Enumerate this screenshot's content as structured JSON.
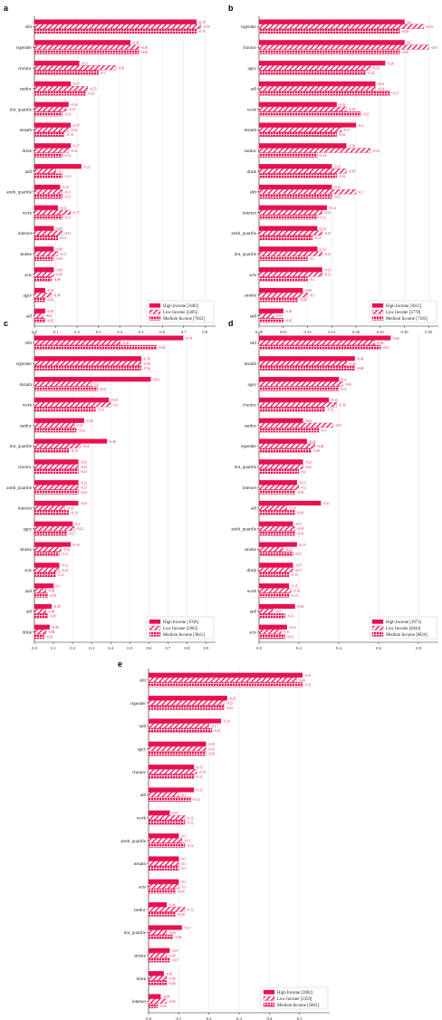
{
  "colors": {
    "bar": "#e8114f",
    "text_value": "#e8114f",
    "axis": "#222222",
    "grid": "#dddddd"
  },
  "legend_labels": [
    "High Income",
    "Low Income",
    "Medium Income"
  ],
  "chart_data": [
    {
      "panel": "a",
      "type": "bar",
      "orientation": "horizontal",
      "categories": [
        "shlt",
        "rsgender",
        "chronic",
        "raeduc",
        "itot_quartile",
        "mstath",
        "drink",
        "iadl",
        "atotb_quartile",
        "work",
        "internet",
        "smoke",
        "acts",
        "agey",
        "adl"
      ],
      "series": [
        {
          "name": "High Income",
          "n": "[3482]",
          "values": [
            0.76,
            0.45,
            0.21,
            0.17,
            0.16,
            0.17,
            0.17,
            0.22,
            0.12,
            0.11,
            0.09,
            0.09,
            0.09,
            0.05,
            0.05
          ]
        },
        {
          "name": "Low Income",
          "n": "[3405]",
          "values": [
            0.78,
            0.49,
            0.38,
            0.25,
            0.15,
            0.16,
            0.16,
            0.1,
            0.13,
            0.17,
            0.13,
            0.11,
            0.09,
            0.08,
            0.04
          ]
        },
        {
          "name": "Medium Income",
          "n": "[7042]",
          "values": [
            0.76,
            0.49,
            0.3,
            0.24,
            0.13,
            0.14,
            0.13,
            0.13,
            0.13,
            0.13,
            0.11,
            0.09,
            0.08,
            0.05,
            0.05
          ]
        }
      ],
      "xticks": [
        0.0,
        0.1,
        0.2,
        0.3,
        0.4,
        0.5,
        0.6,
        0.7,
        0.8
      ],
      "xlim": [
        0,
        0.85
      ],
      "legend": "bottom-right"
    },
    {
      "panel": "b",
      "type": "bar",
      "orientation": "horizontal",
      "categories": [
        "rsgender",
        "chronic",
        "agey",
        "adl",
        "work",
        "mstath",
        "raeduc",
        "drink",
        "shlt",
        "internet",
        "atotb_quartile",
        "itot_quartile",
        "acts",
        "smoke",
        "iadl"
      ],
      "series": [
        {
          "name": "High Income",
          "n": "[3612]",
          "values": [
            0.3,
            0.3,
            0.26,
            0.24,
            0.16,
            0.2,
            0.18,
            0.15,
            0.15,
            0.14,
            0.12,
            0.12,
            0.13,
            0.09,
            0.05
          ]
        },
        {
          "name": "Low Income",
          "n": "[3778]",
          "values": [
            0.34,
            0.35,
            0.23,
            0.24,
            0.18,
            0.17,
            0.23,
            0.18,
            0.2,
            0.13,
            0.13,
            0.13,
            0.13,
            0.1,
            0.03
          ]
        },
        {
          "name": "Medium Income",
          "n": "[7183]",
          "values": [
            0.29,
            0.29,
            0.22,
            0.27,
            0.21,
            0.16,
            0.12,
            0.16,
            0.15,
            0.12,
            0.11,
            0.1,
            0.1,
            0.08,
            0.05
          ]
        }
      ],
      "xticks": [
        0.0,
        0.05,
        0.1,
        0.15,
        0.2,
        0.25,
        0.3,
        0.35
      ],
      "xlim": [
        0,
        0.37
      ],
      "legend": "bottom-right"
    },
    {
      "panel": "c",
      "type": "bar",
      "orientation": "horizontal",
      "categories": [
        "shlt",
        "rsgender",
        "mstath",
        "work",
        "raeduc",
        "itot_quartile",
        "chronic",
        "atotb_quartile",
        "internet",
        "agey",
        "smoke",
        "acts",
        "iadl",
        "adl",
        "drink"
      ],
      "series": [
        {
          "name": "High Income",
          "n": "[1938]",
          "values": [
            0.78,
            0.56,
            0.61,
            0.39,
            0.26,
            0.38,
            0.23,
            0.23,
            0.23,
            0.2,
            0.19,
            0.13,
            0.1,
            0.09,
            0.08
          ]
        },
        {
          "name": "Low Income",
          "n": "[2065]",
          "values": [
            0.45,
            0.56,
            0.3,
            0.4,
            0.21,
            0.24,
            0.23,
            0.23,
            0.16,
            0.21,
            0.14,
            0.13,
            0.06,
            0.06,
            0.06
          ]
        },
        {
          "name": "Medium Income",
          "n": "[3841]",
          "values": [
            0.64,
            0.56,
            0.33,
            0.32,
            0.22,
            0.18,
            0.23,
            0.23,
            0.18,
            0.17,
            0.13,
            0.11,
            0.07,
            0.07,
            0.05
          ]
        }
      ],
      "xticks": [
        0.0,
        0.1,
        0.2,
        0.3,
        0.4,
        0.5,
        0.6,
        0.7,
        0.8,
        0.9
      ],
      "xlim": [
        0,
        0.95
      ],
      "legend": "bottom-right"
    },
    {
      "panel": "d",
      "type": "bar",
      "orientation": "horizontal",
      "categories": [
        "shlt",
        "mstath",
        "agey",
        "chronic",
        "raeduc",
        "rsgender",
        "itot_quartile",
        "internet",
        "adl",
        "atotb_quartile",
        "smoke",
        "drink",
        "work",
        "iadl",
        "acts"
      ],
      "series": [
        {
          "name": "High Income",
          "n": "[3973]",
          "values": [
            0.66,
            0.48,
            0.4,
            0.35,
            0.22,
            0.24,
            0.22,
            0.19,
            0.31,
            0.17,
            0.19,
            0.17,
            0.15,
            0.18,
            0.14
          ]
        },
        {
          "name": "Low Income",
          "n": "[4044]",
          "values": [
            0.58,
            0.44,
            0.42,
            0.39,
            0.37,
            0.28,
            0.22,
            0.2,
            0.14,
            0.18,
            0.12,
            0.17,
            0.16,
            0.07,
            0.11
          ]
        },
        {
          "name": "Medium Income",
          "n": "[8026]",
          "values": [
            0.61,
            0.48,
            0.4,
            0.33,
            0.3,
            0.26,
            0.2,
            0.18,
            0.18,
            0.18,
            0.17,
            0.15,
            0.15,
            0.13,
            0.13
          ]
        }
      ],
      "xticks": [
        0.0,
        0.2,
        0.4,
        0.6,
        0.8
      ],
      "xlim": [
        0,
        0.9
      ],
      "legend": "bottom-right"
    },
    {
      "panel": "e",
      "type": "bar",
      "orientation": "horizontal",
      "categories": [
        "shlt",
        "rsgender",
        "iadl",
        "agey",
        "chronic",
        "adl",
        "work",
        "atotb_quartile",
        "mstath",
        "acts",
        "raeduc",
        "itot_quartile",
        "smoke",
        "drink",
        "internet"
      ],
      "series": [
        {
          "name": "High Income",
          "n": "[2802]",
          "values": [
            0.51,
            0.26,
            0.24,
            0.19,
            0.15,
            0.15,
            0.07,
            0.1,
            0.1,
            0.1,
            0.06,
            0.11,
            0.07,
            0.05,
            0.04
          ]
        },
        {
          "name": "Low Income",
          "n": "[3359]",
          "values": [
            0.49,
            0.25,
            0.2,
            0.19,
            0.16,
            0.1,
            0.12,
            0.11,
            0.1,
            0.1,
            0.12,
            0.06,
            0.06,
            0.06,
            0.06
          ]
        },
        {
          "name": "Medium Income",
          "n": "[5882]",
          "values": [
            0.51,
            0.25,
            0.21,
            0.19,
            0.15,
            0.14,
            0.12,
            0.12,
            0.1,
            0.09,
            0.09,
            0.08,
            0.07,
            0.06,
            0.03
          ]
        }
      ],
      "xticks": [
        0.0,
        0.1,
        0.2,
        0.3,
        0.4,
        0.5
      ],
      "xlim": [
        0,
        0.6
      ],
      "legend": "bottom-right"
    }
  ]
}
